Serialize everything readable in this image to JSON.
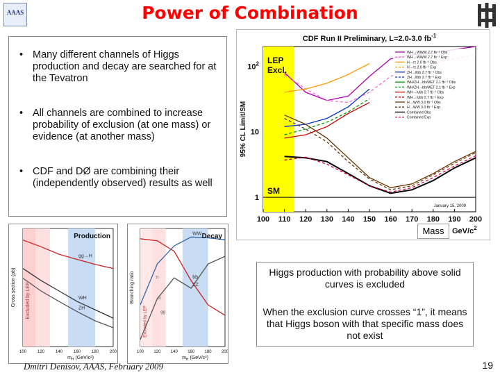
{
  "slide": {
    "title": "Power of Combination",
    "logo_text": "AAAS",
    "bullets": [
      "Many different channels of Higgs production and decay are searched for at the Tevatron",
      "All channels are combined to increase probability of exclusion (at one mass) or evidence (at another mass)",
      "CDF and DØ are combining their (independently observed) results as well"
    ],
    "description_1": "Higgs production with probability above solid curves is excluded",
    "description_2": "When the exclusion curve crosses “1”, it means that Higgs boson with that specific mass does not exist",
    "footer": "Dmitri Denisov, AAAS, February 2009",
    "page_number": "19",
    "mass_label": "Mass"
  },
  "colors": {
    "title": "#ff0000",
    "lep_band": "#ffff00",
    "combined": "#000000",
    "combined_exp": "#cc0044"
  },
  "chart_data": [
    {
      "type": "line",
      "title": "CDF Run II Preliminary, L=2.0-3.0 fb",
      "title_superscript": "-1",
      "ylabel": "95% CL Limit/SM",
      "xlabel": "GeV/c",
      "xlabel_superscript": "2",
      "x_ticks": [
        100,
        110,
        120,
        130,
        140,
        150,
        160,
        170,
        180,
        190,
        200
      ],
      "y_scale": "log",
      "ylim": [
        0.6,
        200
      ],
      "y_tick_labels": [
        {
          "value": 1,
          "label": "1"
        },
        {
          "value": 10,
          "label": "10"
        },
        {
          "value": 100,
          "label": "10",
          "sup": "2"
        }
      ],
      "annotations": [
        "LEP",
        "Excl.",
        "SM"
      ],
      "date": "January 15, 2009",
      "legend_position": "top-right",
      "lep_excluded_range": [
        100,
        114.4
      ],
      "legend": [
        {
          "label": "WH→WWW 2.7 fb⁻¹ Obs",
          "color": "#aa00aa",
          "style": "solid"
        },
        {
          "label": "WH→WWW 2.7 fb⁻¹ Exp",
          "color": "#ff66cc",
          "style": "dashed"
        },
        {
          "label": "H→ττ 2.0 fb⁻¹ Obs",
          "color": "#ff9900",
          "style": "solid"
        },
        {
          "label": "H→ττ 2.0 fb⁻¹ Exp",
          "color": "#ff9900",
          "style": "dashed"
        },
        {
          "label": "ZH→llbb 2.7 fb⁻¹ Obs",
          "color": "#0033cc",
          "style": "solid"
        },
        {
          "label": "ZH→llbb 2.7 fb⁻¹ Exp",
          "color": "#0033cc",
          "style": "dashed"
        },
        {
          "label": "WH/ZH→bb/MET 2.1 fb⁻¹ Obs",
          "color": "#009900",
          "style": "solid"
        },
        {
          "label": "WH/ZH→bb/MET 2.1 fb⁻¹ Exp",
          "color": "#009900",
          "style": "dashed"
        },
        {
          "label": "WH→lνbb 2.7 fb⁻¹ Obs",
          "color": "#cc0000",
          "style": "solid"
        },
        {
          "label": "WH→lνbb 2.7 fb⁻¹ Exp",
          "color": "#cc0000",
          "style": "dashed"
        },
        {
          "label": "H→WW 3.0 fb⁻¹ Obs",
          "color": "#663300",
          "style": "solid"
        },
        {
          "label": "H→WW 3.0 fb⁻¹ Exp",
          "color": "#663300",
          "style": "dashed"
        },
        {
          "label": "Combined Obs",
          "color": "#000000",
          "style": "solid"
        },
        {
          "label": "Combined Exp",
          "color": "#cc0044",
          "style": "dashed"
        }
      ],
      "series": [
        {
          "color": "#aa00aa",
          "dash": "",
          "x": [
            110,
            120,
            130,
            140,
            150,
            160,
            170,
            180,
            190,
            200
          ],
          "y": [
            80,
            40,
            30,
            35,
            70,
            130,
            150,
            160,
            180,
            200
          ]
        },
        {
          "color": "#ff66cc",
          "dash": "4,3",
          "x": [
            110,
            120,
            130,
            140,
            150,
            160,
            170,
            180,
            190,
            200
          ],
          "y": [
            75,
            45,
            30,
            28,
            40,
            70,
            90,
            110,
            130,
            150
          ]
        },
        {
          "color": "#ff9900",
          "dash": "",
          "x": [
            110,
            120,
            130,
            140,
            150
          ],
          "y": [
            40,
            45,
            55,
            75,
            110
          ]
        },
        {
          "color": "#0033cc",
          "dash": "",
          "x": [
            110,
            120,
            130,
            140,
            150
          ],
          "y": [
            12,
            13,
            16,
            24,
            45
          ]
        },
        {
          "color": "#009900",
          "dash": "4,3",
          "x": [
            110,
            120,
            130,
            140,
            150
          ],
          "y": [
            9,
            11,
            14,
            20,
            32
          ]
        },
        {
          "color": "#cc0000",
          "dash": "",
          "x": [
            110,
            120,
            130,
            140,
            150
          ],
          "y": [
            8,
            9,
            12,
            19,
            28
          ]
        },
        {
          "color": "#663300",
          "dash": "",
          "x": [
            110,
            120,
            130,
            140,
            150,
            160,
            170,
            180,
            190,
            200
          ],
          "y": [
            18,
            13,
            8,
            4,
            2,
            1.4,
            1.6,
            2.3,
            3.5,
            5
          ]
        },
        {
          "color": "#663300",
          "dash": "4,3",
          "x": [
            110,
            120,
            130,
            140,
            150,
            160,
            170,
            180,
            190,
            200
          ],
          "y": [
            16,
            11,
            7,
            3.5,
            1.9,
            1.3,
            1.5,
            2.2,
            3.3,
            4.8
          ]
        },
        {
          "color": "#000000",
          "dash": "",
          "x": [
            110,
            120,
            130,
            140,
            150,
            160,
            170,
            180,
            190,
            200
          ],
          "y": [
            4.2,
            4,
            3.5,
            2.3,
            1.5,
            1.15,
            1.3,
            1.8,
            2.8,
            4
          ]
        },
        {
          "color": "#cc0044",
          "dash": "4,3",
          "x": [
            110,
            120,
            130,
            140,
            150,
            160,
            170,
            180,
            190,
            200
          ],
          "y": [
            3.7,
            4.1,
            3.2,
            2.2,
            1.5,
            1.2,
            1.4,
            2,
            3,
            4.3
          ]
        }
      ]
    },
    {
      "type": "area",
      "title": "Production",
      "ylabel": "Cross section (pb)",
      "xlabel": "m",
      "xlabel_sub": "H",
      "xlabel_unit": "(GeV/c²)",
      "x_ticks": [
        100,
        120,
        140,
        160,
        180,
        200
      ],
      "bands": [
        {
          "label": "Excluded by LEP",
          "range": [
            100,
            114
          ],
          "color": "#ffd0d0"
        },
        {
          "color": "#ffe0e0",
          "range": [
            114,
            130
          ]
        },
        {
          "color": "#c8dcf4",
          "range": [
            150,
            180
          ]
        }
      ],
      "series": [
        {
          "name": "gg→H",
          "x": [
            100,
            120,
            140,
            160,
            180,
            200
          ],
          "y": [
            1.8,
            1.3,
            0.9,
            0.7,
            0.55,
            0.45
          ],
          "color": "#cc2222"
        },
        {
          "name": "WH",
          "x": [
            100,
            120,
            140,
            160,
            180,
            200
          ],
          "y": [
            0.45,
            0.25,
            0.15,
            0.09,
            0.06,
            0.04
          ],
          "color": "#333333"
        },
        {
          "name": "ZH",
          "x": [
            100,
            120,
            140,
            160,
            180,
            200
          ],
          "y": [
            0.28,
            0.15,
            0.09,
            0.055,
            0.035,
            0.025
          ],
          "color": "#555555"
        }
      ]
    },
    {
      "type": "line",
      "title": "Decay",
      "ylabel": "Branching ratio",
      "xlabel": "m",
      "xlabel_sub": "H",
      "xlabel_unit": "(GeV/c²)",
      "x_ticks": [
        100,
        120,
        140,
        160,
        180,
        200
      ],
      "annotations": [
        "bb",
        "WW",
        "ZZ",
        "ττ",
        "cc",
        "gg",
        "Excluded by LEP"
      ],
      "bands": [
        {
          "range": [
            100,
            114
          ],
          "color": "#ffe8e8"
        },
        {
          "range": [
            114,
            130
          ],
          "color": "#ffe0e0"
        },
        {
          "range": [
            150,
            180
          ],
          "color": "#c8dcf4"
        }
      ],
      "series": [
        {
          "name": "bb",
          "x": [
            100,
            120,
            140,
            160,
            180,
            200
          ],
          "y": [
            0.8,
            0.7,
            0.35,
            0.05,
            0.01,
            0.005
          ],
          "color": "#cc2222"
        },
        {
          "name": "WW",
          "x": [
            100,
            120,
            140,
            160,
            180,
            200
          ],
          "y": [
            0.01,
            0.15,
            0.5,
            0.9,
            0.85,
            0.75
          ],
          "color": "#3366aa"
        },
        {
          "name": "ZZ",
          "x": [
            100,
            120,
            140,
            160,
            180,
            200
          ],
          "y": [
            0.001,
            0.015,
            0.06,
            0.03,
            0.15,
            0.25
          ],
          "color": "#555555"
        }
      ]
    }
  ]
}
